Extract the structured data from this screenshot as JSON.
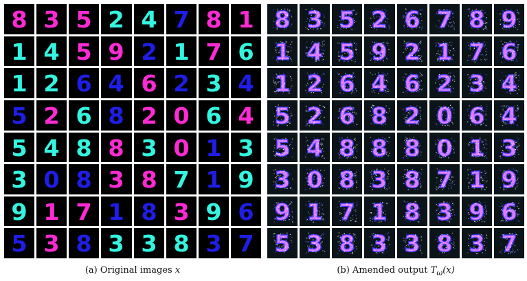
{
  "panels": [
    {
      "caption": {
        "label": "(a) Original images",
        "var": "x"
      },
      "style": "clean",
      "cells": [
        [
          {
            "d": "8",
            "c": "#ff2ad4"
          },
          {
            "d": "3",
            "c": "#ff2ad4"
          },
          {
            "d": "5",
            "c": "#ff2ad4"
          },
          {
            "d": "2",
            "c": "#33f5e0"
          },
          {
            "d": "4",
            "c": "#33f5e0"
          },
          {
            "d": "7",
            "c": "#1e1ee6"
          },
          {
            "d": "8",
            "c": "#ff2ad4"
          },
          {
            "d": "1",
            "c": "#ff2ad4"
          }
        ],
        [
          {
            "d": "1",
            "c": "#33f5e0"
          },
          {
            "d": "4",
            "c": "#33f5e0"
          },
          {
            "d": "5",
            "c": "#ff2ad4"
          },
          {
            "d": "9",
            "c": "#ff2ad4"
          },
          {
            "d": "2",
            "c": "#1e1ee6"
          },
          {
            "d": "1",
            "c": "#33f5e0"
          },
          {
            "d": "7",
            "c": "#ff2ad4"
          },
          {
            "d": "6",
            "c": "#33f5e0"
          }
        ],
        [
          {
            "d": "1",
            "c": "#33f5e0"
          },
          {
            "d": "2",
            "c": "#33f5e0"
          },
          {
            "d": "6",
            "c": "#1e1ee6"
          },
          {
            "d": "4",
            "c": "#1e1ee6"
          },
          {
            "d": "6",
            "c": "#ff2ad4"
          },
          {
            "d": "2",
            "c": "#1e1ee6"
          },
          {
            "d": "3",
            "c": "#33f5e0"
          },
          {
            "d": "4",
            "c": "#1e1ee6"
          }
        ],
        [
          {
            "d": "5",
            "c": "#1e1ee6"
          },
          {
            "d": "2",
            "c": "#ff2ad4"
          },
          {
            "d": "6",
            "c": "#33f5e0"
          },
          {
            "d": "8",
            "c": "#1e1ee6"
          },
          {
            "d": "2",
            "c": "#ff2ad4"
          },
          {
            "d": "0",
            "c": "#ff2ad4"
          },
          {
            "d": "6",
            "c": "#33f5e0"
          },
          {
            "d": "4",
            "c": "#ff2ad4"
          }
        ],
        [
          {
            "d": "5",
            "c": "#33f5e0"
          },
          {
            "d": "4",
            "c": "#33f5e0"
          },
          {
            "d": "8",
            "c": "#33f5e0"
          },
          {
            "d": "8",
            "c": "#ff2ad4"
          },
          {
            "d": "3",
            "c": "#33f5e0"
          },
          {
            "d": "0",
            "c": "#ff2ad4"
          },
          {
            "d": "1",
            "c": "#1e1ee6"
          },
          {
            "d": "3",
            "c": "#33f5e0"
          }
        ],
        [
          {
            "d": "3",
            "c": "#33f5e0"
          },
          {
            "d": "0",
            "c": "#1e1ee6"
          },
          {
            "d": "8",
            "c": "#1e1ee6"
          },
          {
            "d": "3",
            "c": "#ff2ad4"
          },
          {
            "d": "8",
            "c": "#ff2ad4"
          },
          {
            "d": "7",
            "c": "#33f5e0"
          },
          {
            "d": "1",
            "c": "#1e1ee6"
          },
          {
            "d": "9",
            "c": "#33f5e0"
          }
        ],
        [
          {
            "d": "9",
            "c": "#33f5e0"
          },
          {
            "d": "1",
            "c": "#ff2ad4"
          },
          {
            "d": "7",
            "c": "#ff2ad4"
          },
          {
            "d": "1",
            "c": "#1e1ee6"
          },
          {
            "d": "8",
            "c": "#1e1ee6"
          },
          {
            "d": "3",
            "c": "#ff2ad4"
          },
          {
            "d": "9",
            "c": "#33f5e0"
          },
          {
            "d": "6",
            "c": "#1e1ee6"
          }
        ],
        [
          {
            "d": "5",
            "c": "#1e1ee6"
          },
          {
            "d": "3",
            "c": "#ff2ad4"
          },
          {
            "d": "8",
            "c": "#1e1ee6"
          },
          {
            "d": "3",
            "c": "#33f5e0"
          },
          {
            "d": "3",
            "c": "#33f5e0"
          },
          {
            "d": "8",
            "c": "#33f5e0"
          },
          {
            "d": "3",
            "c": "#1e1ee6"
          },
          {
            "d": "7",
            "c": "#1e1ee6"
          }
        ]
      ]
    },
    {
      "caption": {
        "label": "(b) Amended output",
        "fn": "T",
        "sub": "ω",
        "arg": "(x)"
      },
      "style": "noisy",
      "cells": [
        [
          "8",
          "3",
          "5",
          "2",
          "6",
          "7",
          "8",
          "9"
        ],
        [
          "1",
          "4",
          "5",
          "9",
          "2",
          "1",
          "7",
          "6"
        ],
        [
          "1",
          "2",
          "6",
          "4",
          "6",
          "2",
          "3",
          "4"
        ],
        [
          "5",
          "2",
          "6",
          "8",
          "2",
          "0",
          "6",
          "4"
        ],
        [
          "5",
          "4",
          "8",
          "8",
          "8",
          "0",
          "1",
          "3"
        ],
        [
          "3",
          "0",
          "8",
          "3",
          "8",
          "7",
          "1",
          "9"
        ],
        [
          "9",
          "1",
          "7",
          "1",
          "8",
          "3",
          "9",
          "6"
        ],
        [
          "5",
          "3",
          "8",
          "3",
          "3",
          "8",
          "3",
          "7"
        ]
      ]
    }
  ],
  "colors": {
    "magenta": "#ff2ad4",
    "cyan": "#33f5e0",
    "blue": "#1e1ee6",
    "noise_pink": "#e27bff",
    "noise_blue": "#3a3aff"
  }
}
